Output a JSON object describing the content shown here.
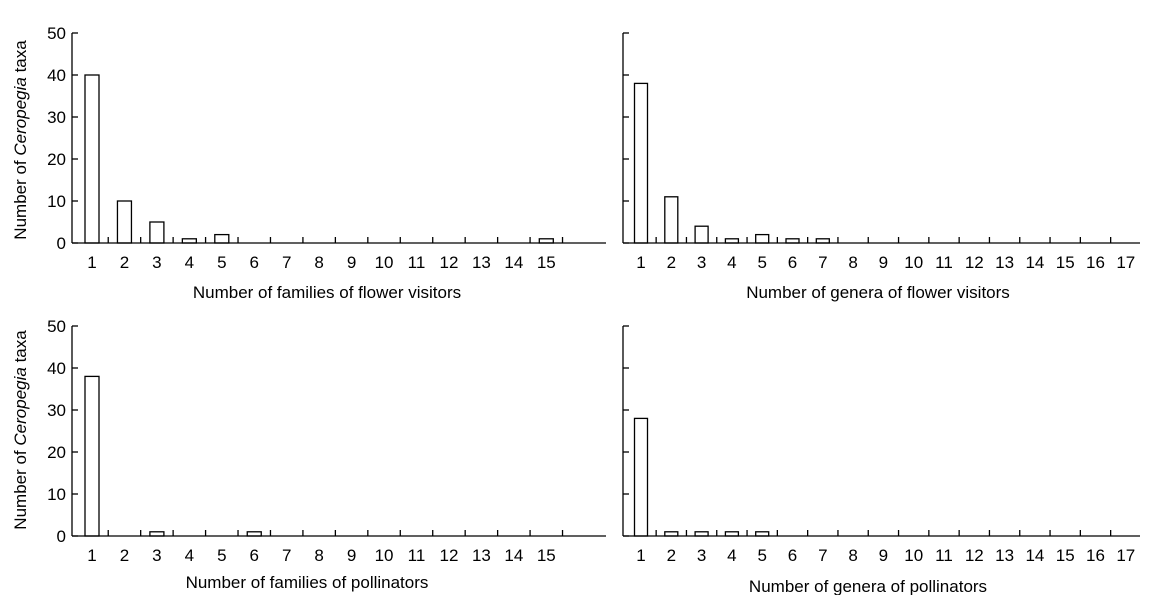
{
  "chart_data": [
    {
      "type": "bar",
      "xlabel": "Number of families of flower visitors",
      "ylabel_prefix": "Number of ",
      "ylabel_italic": "Ceropegia",
      "ylabel_suffix": " taxa",
      "ylim": [
        0,
        50
      ],
      "yticks": [
        "0",
        "10",
        "20",
        "30",
        "40",
        "50"
      ],
      "categories": [
        "1",
        "2",
        "3",
        "4",
        "5",
        "6",
        "7",
        "8",
        "9",
        "10",
        "11",
        "12",
        "13",
        "14",
        "15"
      ],
      "values": [
        40,
        10,
        5,
        1,
        2,
        0,
        0,
        0,
        0,
        0,
        0,
        0,
        0,
        0,
        1
      ]
    },
    {
      "type": "bar",
      "xlabel": "Number of genera of flower visitors",
      "ylim": [
        0,
        50
      ],
      "categories": [
        "1",
        "2",
        "3",
        "4",
        "5",
        "6",
        "7",
        "8",
        "9",
        "10",
        "11",
        "12",
        "13",
        "14",
        "15",
        "16",
        "17"
      ],
      "values": [
        38,
        11,
        4,
        1,
        2,
        1,
        1,
        0,
        0,
        0,
        0,
        0,
        0,
        0,
        0,
        0,
        0
      ]
    },
    {
      "type": "bar",
      "xlabel": "Number of families of pollinators",
      "ylabel_prefix": "Number of ",
      "ylabel_italic": "Ceropegia",
      "ylabel_suffix": " taxa",
      "ylim": [
        0,
        50
      ],
      "yticks": [
        "0",
        "10",
        "20",
        "30",
        "40",
        "50"
      ],
      "categories": [
        "1",
        "2",
        "3",
        "4",
        "5",
        "6",
        "7",
        "8",
        "9",
        "10",
        "11",
        "12",
        "13",
        "14",
        "15"
      ],
      "values": [
        38,
        0,
        1,
        0,
        0,
        1,
        0,
        0,
        0,
        0,
        0,
        0,
        0,
        0,
        0
      ]
    },
    {
      "type": "bar",
      "xlabel": "Number of genera of pollinators",
      "ylim": [
        0,
        50
      ],
      "categories": [
        "1",
        "2",
        "3",
        "4",
        "5",
        "6",
        "7",
        "8",
        "9",
        "10",
        "11",
        "12",
        "13",
        "14",
        "15",
        "16",
        "17"
      ],
      "values": [
        28,
        1,
        1,
        1,
        1,
        0,
        0,
        0,
        0,
        0,
        0,
        0,
        0,
        0,
        0,
        0,
        0
      ]
    }
  ]
}
